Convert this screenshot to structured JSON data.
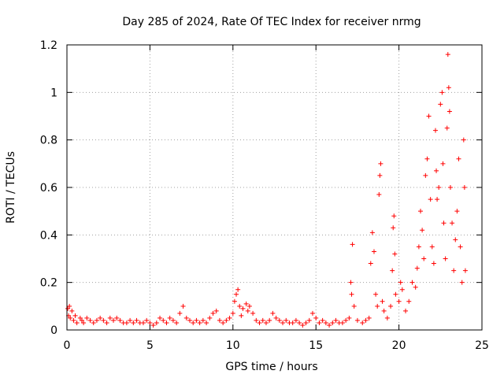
{
  "chart_data": {
    "type": "scatter",
    "title": "Day 285 of 2024, Rate Of TEC Index for receiver nrmg",
    "xlabel": "GPS time / hours",
    "ylabel": "ROTI / TECUs",
    "xlim": [
      0,
      25
    ],
    "ylim": [
      0,
      1.2
    ],
    "xticks": [
      0,
      5,
      10,
      15,
      20,
      25
    ],
    "xtick_labels": [
      "0",
      "5",
      "10",
      "15",
      "20",
      "25"
    ],
    "yticks": [
      0,
      0.2,
      0.4,
      0.6,
      0.8,
      1.0,
      1.2
    ],
    "ytick_labels": [
      "0",
      "0.2",
      "0.4",
      "0.6",
      "0.8",
      "1",
      "1.2"
    ],
    "grid": true,
    "legend": "none",
    "marker": "plus",
    "color": "#ff0000",
    "series": [
      {
        "points": [
          [
            0.05,
            0.09
          ],
          [
            0.1,
            0.06
          ],
          [
            0.15,
            0.1
          ],
          [
            0.2,
            0.05
          ],
          [
            0.3,
            0.08
          ],
          [
            0.4,
            0.04
          ],
          [
            0.5,
            0.06
          ],
          [
            0.6,
            0.03
          ],
          [
            0.8,
            0.05
          ],
          [
            0.9,
            0.04
          ],
          [
            1.0,
            0.03
          ],
          [
            1.2,
            0.05
          ],
          [
            1.4,
            0.04
          ],
          [
            1.6,
            0.03
          ],
          [
            1.8,
            0.04
          ],
          [
            2.0,
            0.05
          ],
          [
            2.2,
            0.04
          ],
          [
            2.4,
            0.03
          ],
          [
            2.6,
            0.05
          ],
          [
            2.8,
            0.04
          ],
          [
            3.0,
            0.05
          ],
          [
            3.2,
            0.04
          ],
          [
            3.4,
            0.03
          ],
          [
            3.6,
            0.03
          ],
          [
            3.8,
            0.04
          ],
          [
            4.0,
            0.03
          ],
          [
            4.2,
            0.04
          ],
          [
            4.4,
            0.03
          ],
          [
            4.6,
            0.03
          ],
          [
            4.8,
            0.04
          ],
          [
            5.0,
            0.03
          ],
          [
            5.2,
            0.02
          ],
          [
            5.4,
            0.03
          ],
          [
            5.6,
            0.05
          ],
          [
            5.8,
            0.04
          ],
          [
            6.0,
            0.03
          ],
          [
            6.2,
            0.05
          ],
          [
            6.4,
            0.04
          ],
          [
            6.6,
            0.03
          ],
          [
            6.8,
            0.07
          ],
          [
            7.0,
            0.1
          ],
          [
            7.2,
            0.05
          ],
          [
            7.4,
            0.04
          ],
          [
            7.6,
            0.03
          ],
          [
            7.8,
            0.04
          ],
          [
            8.0,
            0.03
          ],
          [
            8.2,
            0.04
          ],
          [
            8.4,
            0.03
          ],
          [
            8.6,
            0.05
          ],
          [
            8.8,
            0.07
          ],
          [
            9.0,
            0.08
          ],
          [
            9.2,
            0.04
          ],
          [
            9.4,
            0.03
          ],
          [
            9.6,
            0.04
          ],
          [
            9.8,
            0.05
          ],
          [
            10.0,
            0.07
          ],
          [
            10.1,
            0.12
          ],
          [
            10.2,
            0.15
          ],
          [
            10.3,
            0.17
          ],
          [
            10.4,
            0.1
          ],
          [
            10.5,
            0.06
          ],
          [
            10.6,
            0.09
          ],
          [
            10.8,
            0.11
          ],
          [
            10.9,
            0.08
          ],
          [
            11.0,
            0.1
          ],
          [
            11.2,
            0.07
          ],
          [
            11.4,
            0.04
          ],
          [
            11.6,
            0.03
          ],
          [
            11.8,
            0.04
          ],
          [
            12.0,
            0.03
          ],
          [
            12.2,
            0.04
          ],
          [
            12.4,
            0.07
          ],
          [
            12.6,
            0.05
          ],
          [
            12.8,
            0.04
          ],
          [
            13.0,
            0.03
          ],
          [
            13.2,
            0.04
          ],
          [
            13.4,
            0.03
          ],
          [
            13.6,
            0.03
          ],
          [
            13.8,
            0.04
          ],
          [
            14.0,
            0.03
          ],
          [
            14.2,
            0.02
          ],
          [
            14.4,
            0.03
          ],
          [
            14.6,
            0.04
          ],
          [
            14.8,
            0.07
          ],
          [
            15.0,
            0.05
          ],
          [
            15.2,
            0.03
          ],
          [
            15.4,
            0.04
          ],
          [
            15.6,
            0.03
          ],
          [
            15.8,
            0.02
          ],
          [
            16.0,
            0.03
          ],
          [
            16.2,
            0.04
          ],
          [
            16.4,
            0.03
          ],
          [
            16.6,
            0.03
          ],
          [
            16.8,
            0.04
          ],
          [
            17.0,
            0.05
          ],
          [
            17.1,
            0.2
          ],
          [
            17.15,
            0.15
          ],
          [
            17.2,
            0.36
          ],
          [
            17.3,
            0.1
          ],
          [
            17.5,
            0.04
          ],
          [
            17.8,
            0.03
          ],
          [
            18.0,
            0.04
          ],
          [
            18.2,
            0.05
          ],
          [
            18.3,
            0.28
          ],
          [
            18.4,
            0.41
          ],
          [
            18.5,
            0.33
          ],
          [
            18.6,
            0.15
          ],
          [
            18.7,
            0.1
          ],
          [
            18.8,
            0.57
          ],
          [
            18.85,
            0.65
          ],
          [
            18.9,
            0.7
          ],
          [
            19.0,
            0.12
          ],
          [
            19.1,
            0.08
          ],
          [
            19.3,
            0.05
          ],
          [
            19.5,
            0.1
          ],
          [
            19.6,
            0.25
          ],
          [
            19.65,
            0.43
          ],
          [
            19.7,
            0.48
          ],
          [
            19.75,
            0.32
          ],
          [
            19.8,
            0.15
          ],
          [
            20.0,
            0.12
          ],
          [
            20.1,
            0.2
          ],
          [
            20.2,
            0.17
          ],
          [
            20.4,
            0.08
          ],
          [
            20.6,
            0.12
          ],
          [
            20.8,
            0.2
          ],
          [
            21.0,
            0.18
          ],
          [
            21.1,
            0.26
          ],
          [
            21.2,
            0.35
          ],
          [
            21.3,
            0.5
          ],
          [
            21.4,
            0.42
          ],
          [
            21.5,
            0.3
          ],
          [
            21.6,
            0.65
          ],
          [
            21.7,
            0.72
          ],
          [
            21.8,
            0.9
          ],
          [
            21.9,
            0.55
          ],
          [
            22.0,
            0.35
          ],
          [
            22.1,
            0.28
          ],
          [
            22.2,
            0.84
          ],
          [
            22.25,
            0.67
          ],
          [
            22.3,
            0.55
          ],
          [
            22.4,
            0.6
          ],
          [
            22.5,
            0.95
          ],
          [
            22.6,
            1.0
          ],
          [
            22.65,
            0.7
          ],
          [
            22.7,
            0.45
          ],
          [
            22.8,
            0.3
          ],
          [
            22.9,
            0.85
          ],
          [
            22.95,
            1.16
          ],
          [
            23.0,
            1.02
          ],
          [
            23.05,
            0.92
          ],
          [
            23.1,
            0.6
          ],
          [
            23.2,
            0.45
          ],
          [
            23.3,
            0.25
          ],
          [
            23.4,
            0.38
          ],
          [
            23.5,
            0.5
          ],
          [
            23.6,
            0.72
          ],
          [
            23.7,
            0.35
          ],
          [
            23.8,
            0.2
          ],
          [
            23.9,
            0.8
          ],
          [
            23.95,
            0.6
          ],
          [
            24.0,
            0.25
          ]
        ]
      }
    ]
  }
}
